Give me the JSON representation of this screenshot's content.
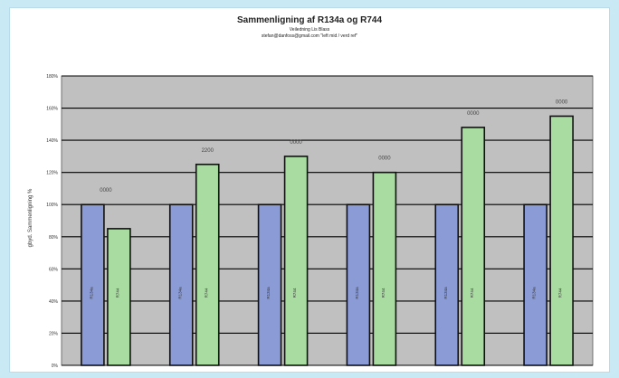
{
  "chart_data": {
    "type": "bar",
    "title": "Sammenligning af R134a og R744",
    "subtitle": "Veiledning Lis Blass",
    "subtitle2": "stefan@danfoss@gmail.com \"left mid / verd ref\"",
    "ylabel": "gbyd. Sammenligning %",
    "xlabel": "",
    "ylim": [
      0,
      180
    ],
    "yticks": [
      "0%",
      "20%",
      "40%",
      "60%",
      "80%",
      "100%",
      "120%",
      "140%",
      "160%",
      "180%"
    ],
    "grid": true,
    "plot_background": "#c0c0c0",
    "categories": [
      "",
      "",
      "",
      "",
      "",
      ""
    ],
    "series": [
      {
        "color": "#8b9bd6",
        "values": [
          100,
          100,
          100,
          100,
          100,
          100
        ],
        "bar_labels": [
          "R134a",
          "R134a",
          "R134a",
          "R134a",
          "R134a",
          "R134a"
        ]
      },
      {
        "color": "#a8dca0",
        "values": [
          85,
          125,
          130,
          120,
          148,
          155
        ],
        "bar_labels": [
          "R744",
          "R744",
          "R744",
          "R744",
          "R744",
          "R744"
        ]
      }
    ],
    "data_labels": [
      "0000",
      "2200",
      "0000",
      "0000",
      "0000",
      "0000"
    ]
  }
}
